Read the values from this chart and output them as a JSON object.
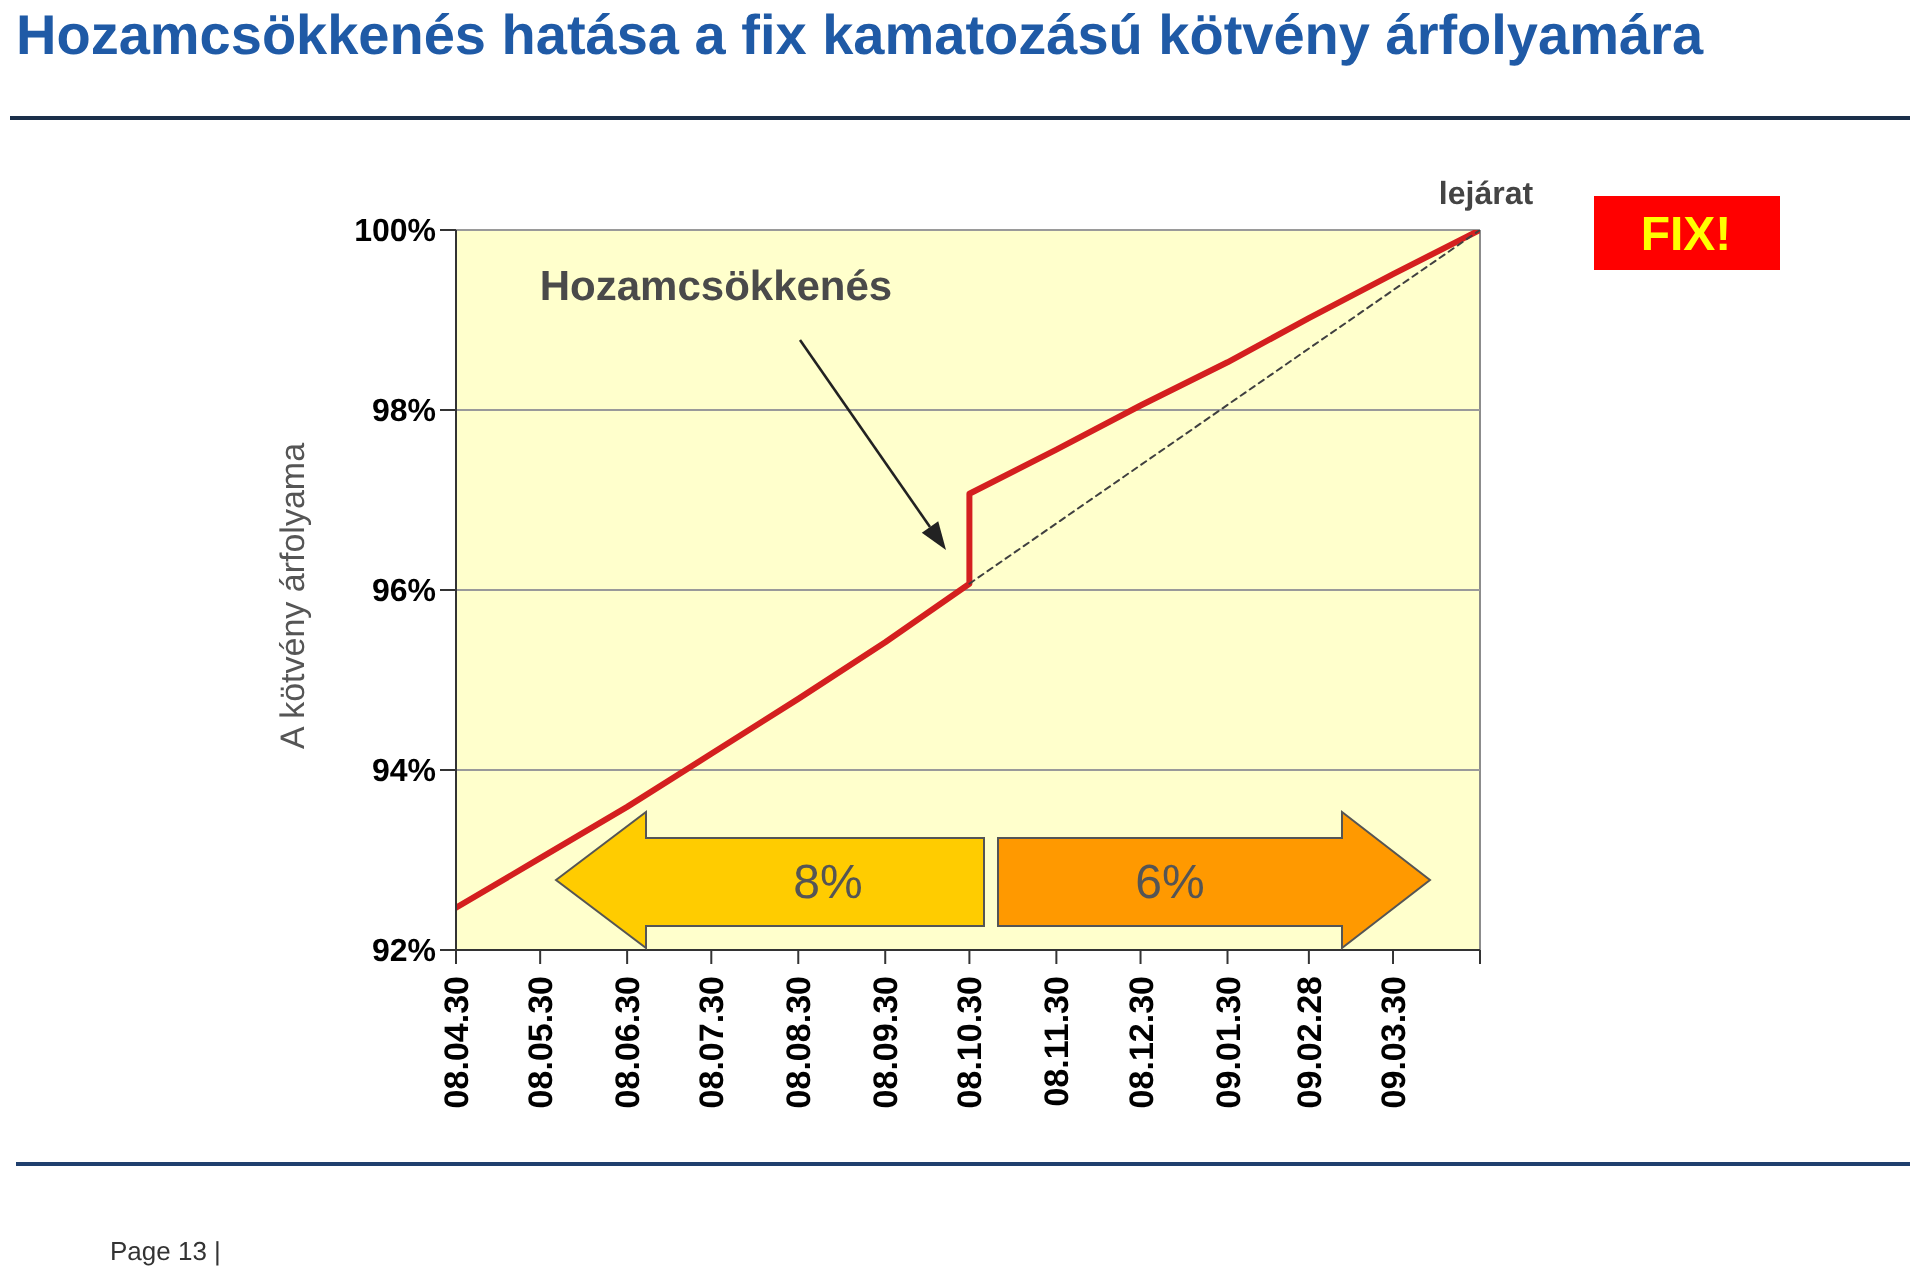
{
  "chart_data": {
    "type": "line",
    "title": "Hozamcsökkenés hatása a fix kamatozású kötvény árfolyamára",
    "ylabel": "A kötvény árfolyama",
    "xlim": [
      "2008-04-30",
      "2009-04-30"
    ],
    "xticks": [
      {
        "value": "2008-04-30",
        "label": "08.04.30"
      },
      {
        "value": "2008-05-30",
        "label": "08.05.30"
      },
      {
        "value": "2008-06-30",
        "label": "08.06.30"
      },
      {
        "value": "2008-07-30",
        "label": "08.07.30"
      },
      {
        "value": "2008-08-30",
        "label": "08.08.30"
      },
      {
        "value": "2008-09-30",
        "label": "08.09.30"
      },
      {
        "value": "2008-10-30",
        "label": "08.10.30"
      },
      {
        "value": "2008-11-30",
        "label": "08.11.30"
      },
      {
        "value": "2008-12-30",
        "label": "08.12.30"
      },
      {
        "value": "2009-01-30",
        "label": "09.01.30"
      },
      {
        "value": "2009-02-28",
        "label": "09.02.28"
      },
      {
        "value": "2009-03-30",
        "label": "09.03.30"
      },
      {
        "value": "2009-04-30",
        "label": null
      }
    ],
    "ylim": [
      92,
      100
    ],
    "yticks": [
      {
        "value": 92,
        "label": "92%"
      },
      {
        "value": 94,
        "label": "94%"
      },
      {
        "value": 96,
        "label": "96%"
      },
      {
        "value": 98,
        "label": "98%"
      },
      {
        "value": 100,
        "label": "100%"
      }
    ],
    "grid": "y",
    "series": [
      {
        "color": "#d41f1f",
        "line_style": "solid",
        "x": [
          "2008-04-30",
          "2008-05-30",
          "2008-06-30",
          "2008-07-30",
          "2008-08-30",
          "2008-09-30",
          "2008-10-30",
          "2008-10-30",
          "2008-11-30",
          "2008-12-30",
          "2009-01-30",
          "2009-02-28",
          "2009-03-30",
          "2009-04-30"
        ],
        "values": [
          92.47,
          93.02,
          93.59,
          94.18,
          94.79,
          95.42,
          96.07,
          97.07,
          97.56,
          98.05,
          98.53,
          99.02,
          99.51,
          100
        ]
      },
      {
        "color": "#404040",
        "line_style": "dashed",
        "x": [
          "2008-10-30",
          "2009-04-30"
        ],
        "values": [
          96.07,
          100
        ]
      }
    ],
    "annotations": [
      "Hozamcsökkenés",
      {
        "text": "lejárat",
        "x": "2009-04-30",
        "y": 100
      },
      "FIX!",
      "8%",
      "6%",
      "Page 13 |"
    ]
  }
}
